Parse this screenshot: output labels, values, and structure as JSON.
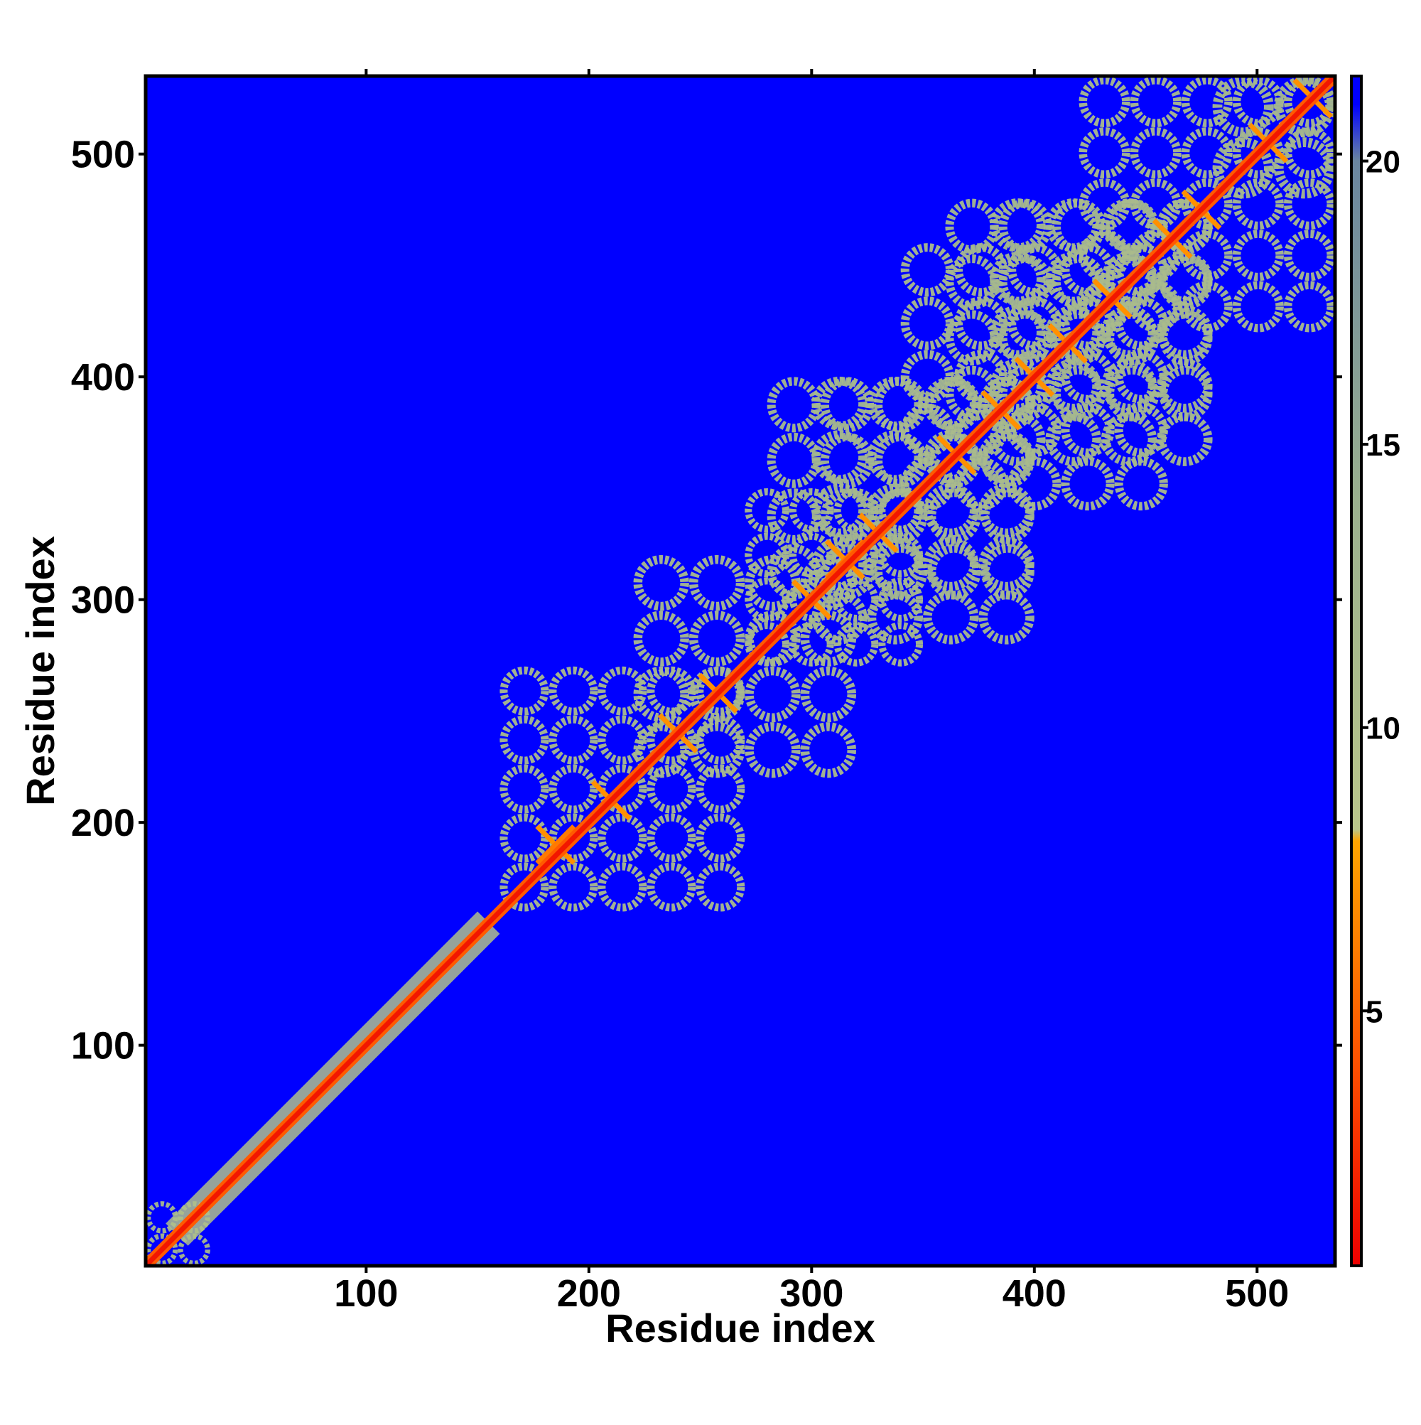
{
  "chart_data": {
    "type": "heatmap",
    "title": "",
    "xlabel": "Residue index",
    "ylabel": "Residue index",
    "xlim": [
      1,
      535
    ],
    "ylim": [
      1,
      535
    ],
    "xticks": [
      100,
      200,
      300,
      400,
      500
    ],
    "yticks": [
      100,
      200,
      300,
      400,
      500
    ],
    "colorbar": {
      "ticks": [
        5,
        10,
        15,
        20
      ],
      "range": [
        0.5,
        21.5
      ],
      "stops": [
        {
          "value": 0.5,
          "color": "#ee0000"
        },
        {
          "value": 4.5,
          "color": "#ff5a00"
        },
        {
          "value": 8.0,
          "color": "#ffa500"
        },
        {
          "value": 8.2,
          "color": "#b9c68a"
        },
        {
          "value": 14.0,
          "color": "#9ab08e"
        },
        {
          "value": 20.0,
          "color": "#6a86a0"
        },
        {
          "value": 21.0,
          "color": "#0000ff"
        },
        {
          "value": 21.5,
          "color": "#0000ff"
        }
      ]
    },
    "background_color": "#0000ff",
    "diagonal": {
      "from": 1,
      "to": 535,
      "value": 1.5
    },
    "contact_domains": [
      {
        "x": [
          1,
          30
        ],
        "y": [
          1,
          30
        ],
        "value": 12
      },
      {
        "x": [
          10,
          160
        ],
        "y": [
          10,
          160
        ],
        "value": 10,
        "band": "near-diagonal"
      },
      {
        "x": [
          160,
          270
        ],
        "y": [
          160,
          270
        ],
        "value": 11
      },
      {
        "x": [
          220,
          320
        ],
        "y": [
          220,
          320
        ],
        "value": 11
      },
      {
        "x": [
          270,
          350
        ],
        "y": [
          270,
          350
        ],
        "value": 11
      },
      {
        "x": [
          280,
          400
        ],
        "y": [
          300,
          400
        ],
        "value": 12
      },
      {
        "x": [
          340,
          460
        ],
        "y": [
          340,
          460
        ],
        "value": 11
      },
      {
        "x": [
          360,
          480
        ],
        "y": [
          380,
          480
        ],
        "value": 12
      },
      {
        "x": [
          420,
          535
        ],
        "y": [
          420,
          535
        ],
        "value": 11
      },
      {
        "x": [
          480,
          535
        ],
        "y": [
          480,
          535
        ],
        "value": 12
      }
    ],
    "hotspots": [
      {
        "x": 185,
        "y": 190
      },
      {
        "x": 210,
        "y": 210
      },
      {
        "x": 240,
        "y": 240
      },
      {
        "x": 258,
        "y": 258
      },
      {
        "x": 300,
        "y": 300
      },
      {
        "x": 315,
        "y": 318
      },
      {
        "x": 330,
        "y": 330
      },
      {
        "x": 365,
        "y": 365
      },
      {
        "x": 385,
        "y": 385
      },
      {
        "x": 400,
        "y": 400
      },
      {
        "x": 415,
        "y": 415
      },
      {
        "x": 435,
        "y": 435
      },
      {
        "x": 462,
        "y": 462
      },
      {
        "x": 475,
        "y": 475
      },
      {
        "x": 505,
        "y": 505
      },
      {
        "x": 525,
        "y": 525
      }
    ]
  }
}
